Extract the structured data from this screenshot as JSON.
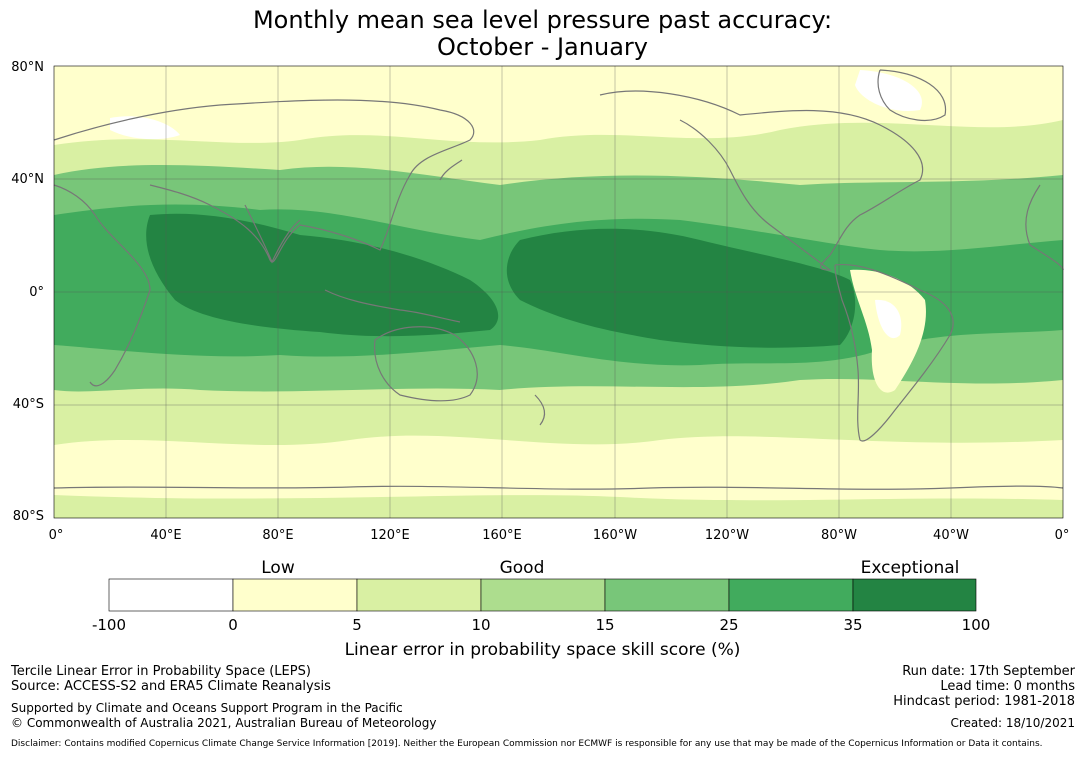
{
  "title": {
    "line1": "Monthly mean sea level pressure past accuracy:",
    "line2": "October - January"
  },
  "map": {
    "lat_labels": [
      "80°N",
      "40°N",
      "0°",
      "40°S",
      "80°S"
    ],
    "lon_labels": [
      "0°",
      "40°E",
      "80°E",
      "120°E",
      "160°E",
      "160°W",
      "120°W",
      "80°W",
      "40°W",
      "0°"
    ],
    "lon_range_deg": [
      0,
      360
    ],
    "lat_range_deg": [
      -80,
      80
    ]
  },
  "legend": {
    "categories": [
      "Low",
      "Good",
      "Exceptional"
    ],
    "ticks": [
      "-100",
      "0",
      "5",
      "10",
      "15",
      "25",
      "35",
      "100"
    ],
    "colors": [
      "#ffffff",
      "#ffffcc",
      "#d9f0a3",
      "#addd8e",
      "#78c679",
      "#41ab5d",
      "#238443"
    ],
    "title": "Linear error in probability space skill score (%)"
  },
  "info_left": {
    "line1": "Tercile Linear Error in Probability Space (LEPS)",
    "line2": "Source: ACCESS-S2 and ERA5 Climate Reanalysis",
    "line3": "Supported by Climate and Oceans Support Program in the Pacific",
    "line4": "© Commonwealth of Australia 2021, Australian Bureau of Meteorology"
  },
  "info_right": {
    "run_date": "Run date: 17th September",
    "lead_time": "Lead time: 0 months",
    "hindcast": "Hindcast period: 1981-2018",
    "created": "Created: 18/10/2021"
  },
  "disclaimer": "Disclaimer: Contains modified Copernicus Climate Change Service Information [2019]. Neither the European Commission nor ECMWF is responsible for any use that may be made of the Copernicus Information or Data it contains.",
  "colors": {
    "coast": "#777777",
    "grid": "#555555"
  }
}
